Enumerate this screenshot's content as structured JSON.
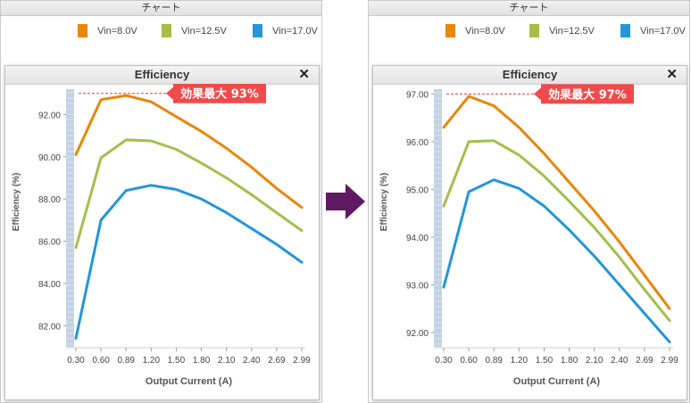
{
  "panels": [
    {
      "title": "チャート",
      "inner_title": "Efficiency",
      "close_label": "✕",
      "legend": [
        {
          "label": "Vin=8.0V",
          "color": "#e8860c"
        },
        {
          "label": "Vin=12.5V",
          "color": "#a3bf4a"
        },
        {
          "label": "Vin=17.0V",
          "color": "#2196d9"
        }
      ],
      "callout": "効果最大 93%",
      "chart_data": {
        "type": "line",
        "title": "Efficiency",
        "xlabel": "Output Current (A)",
        "ylabel": "Efficiency (%)",
        "categories": [
          "0.30",
          "0.60",
          "0.89",
          "1.20",
          "1.50",
          "1.80",
          "2.10",
          "2.40",
          "2.69",
          "2.99"
        ],
        "yticks": [
          "82.00",
          "84.00",
          "86.00",
          "88.00",
          "90.00",
          "92.00"
        ],
        "ylim": [
          81.0,
          93.2
        ],
        "max_line_value": 93.0,
        "series": [
          {
            "name": "Vin=8.0V",
            "color": "#e8860c",
            "values": [
              90.1,
              92.7,
              92.9,
              92.6,
              91.9,
              91.2,
              90.4,
              89.5,
              88.5,
              87.6
            ]
          },
          {
            "name": "Vin=12.5V",
            "color": "#a3bf4a",
            "values": [
              85.7,
              89.95,
              90.8,
              90.75,
              90.35,
              89.7,
              89.0,
              88.2,
              87.35,
              86.5
            ]
          },
          {
            "name": "Vin=17.0V",
            "color": "#2196d9",
            "values": [
              81.4,
              87.0,
              88.4,
              88.65,
              88.45,
              88.0,
              87.35,
              86.6,
              85.85,
              85.0
            ]
          }
        ]
      }
    },
    {
      "title": "チャート",
      "inner_title": "Efficiency",
      "close_label": "✕",
      "legend": [
        {
          "label": "Vin=8.0V",
          "color": "#e8860c"
        },
        {
          "label": "Vin=12.5V",
          "color": "#a3bf4a"
        },
        {
          "label": "Vin=17.0V",
          "color": "#2196d9"
        }
      ],
      "callout": "効果最大 97%",
      "chart_data": {
        "type": "line",
        "title": "Efficiency",
        "xlabel": "Output Current (A)",
        "ylabel": "Efficiency (%)",
        "categories": [
          "0.30",
          "0.60",
          "0.89",
          "1.20",
          "1.50",
          "1.80",
          "2.10",
          "2.40",
          "2.69",
          "2.99"
        ],
        "yticks": [
          "92.00",
          "93.00",
          "94.00",
          "95.00",
          "96.00",
          "97.00"
        ],
        "ylim": [
          91.7,
          97.1
        ],
        "max_line_value": 97.0,
        "series": [
          {
            "name": "Vin=8.0V",
            "color": "#e8860c",
            "values": [
              96.3,
              96.95,
              96.75,
              96.3,
              95.75,
              95.15,
              94.55,
              93.9,
              93.2,
              92.5
            ]
          },
          {
            "name": "Vin=12.5V",
            "color": "#a3bf4a",
            "values": [
              94.65,
              96.0,
              96.02,
              95.72,
              95.28,
              94.75,
              94.2,
              93.58,
              92.9,
              92.25
            ]
          },
          {
            "name": "Vin=17.0V",
            "color": "#2196d9",
            "values": [
              92.95,
              94.95,
              95.2,
              95.02,
              94.65,
              94.15,
              93.6,
              93.0,
              92.4,
              91.8
            ]
          }
        ]
      }
    }
  ],
  "arrow_color": "#5e1a63"
}
